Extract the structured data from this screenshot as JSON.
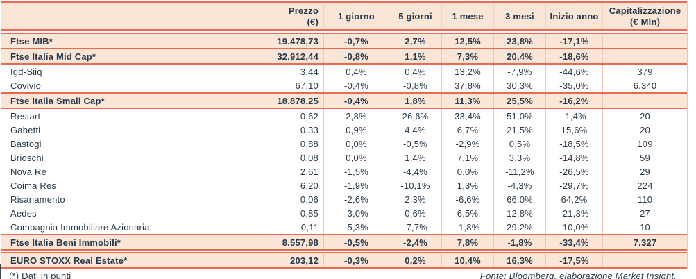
{
  "colors": {
    "accent_coral": "#eb6950",
    "row_peach": "#fbe5d6",
    "text_navy": "#25384a",
    "column_separator_pink": "#f2c4b2"
  },
  "table": {
    "header": {
      "name": "",
      "prezzo_l1": "Prezzo",
      "prezzo_l2": "(€)",
      "d1": "1 giorno",
      "d5": "5 giorni",
      "m1": "1 mese",
      "m3": "3 mesi",
      "ytd": "Inizio anno",
      "cap_l1": "Capitalizzazione",
      "cap_l2": "(€ Mln)"
    },
    "rows": [
      {
        "name": "Ftse MIB*",
        "type": "index",
        "prezzo": "19.478,73",
        "d1": "-0,7%",
        "d5": "2,7%",
        "m1": "12,5%",
        "m3": "23,8%",
        "ytd": "-17,1%",
        "cap": ""
      },
      {
        "name": "Ftse Italia Mid Cap*",
        "type": "index",
        "prezzo": "32.912,44",
        "d1": "-0,8%",
        "d5": "1,1%",
        "m1": "7,3%",
        "m3": "20,4%",
        "ytd": "-18,6%",
        "cap": ""
      },
      {
        "name": "Igd-Siiq",
        "type": "stock",
        "prezzo": "3,44",
        "d1": "0,4%",
        "d5": "0,4%",
        "m1": "13,2%",
        "m3": "-7,9%",
        "ytd": "-44,6%",
        "cap": "379"
      },
      {
        "name": "Covivio",
        "type": "stock",
        "prezzo": "67,10",
        "d1": "-0,4%",
        "d5": "-0,8%",
        "m1": "37,8%",
        "m3": "30,3%",
        "ytd": "-35,0%",
        "cap": "6.340"
      },
      {
        "name": "Ftse Italia Small Cap*",
        "type": "index",
        "prezzo": "18.878,25",
        "d1": "-0,4%",
        "d5": "1,8%",
        "m1": "11,3%",
        "m3": "25,5%",
        "ytd": "-16,2%",
        "cap": ""
      },
      {
        "name": "Restart",
        "type": "stock",
        "prezzo": "0,62",
        "d1": "2,8%",
        "d5": "26,6%",
        "m1": "33,4%",
        "m3": "51,0%",
        "ytd": "-1,4%",
        "cap": "20"
      },
      {
        "name": "Gabetti",
        "type": "stock",
        "prezzo": "0,33",
        "d1": "0,9%",
        "d5": "4,4%",
        "m1": "6,7%",
        "m3": "21,5%",
        "ytd": "15,6%",
        "cap": "20"
      },
      {
        "name": "Bastogi",
        "type": "stock",
        "prezzo": "0,88",
        "d1": "0,0%",
        "d5": "-0,5%",
        "m1": "-2,9%",
        "m3": "0,5%",
        "ytd": "-18,5%",
        "cap": "109"
      },
      {
        "name": "Brioschi",
        "type": "stock",
        "prezzo": "0,08",
        "d1": "0,0%",
        "d5": "1,4%",
        "m1": "7,1%",
        "m3": "3,3%",
        "ytd": "-14,8%",
        "cap": "59"
      },
      {
        "name": "Nova Re",
        "type": "stock",
        "prezzo": "2,61",
        "d1": "-1,5%",
        "d5": "-4,4%",
        "m1": "0,0%",
        "m3": "-11,2%",
        "ytd": "-26,5%",
        "cap": "29"
      },
      {
        "name": "Coima Res",
        "type": "stock",
        "prezzo": "6,20",
        "d1": "-1,9%",
        "d5": "-10,1%",
        "m1": "1,3%",
        "m3": "-4,3%",
        "ytd": "-29,7%",
        "cap": "224"
      },
      {
        "name": "Risanamento",
        "type": "stock",
        "prezzo": "0,06",
        "d1": "-2,6%",
        "d5": "2,3%",
        "m1": "-6,6%",
        "m3": "66,0%",
        "ytd": "64,2%",
        "cap": "110"
      },
      {
        "name": "Aedes",
        "type": "stock",
        "prezzo": "0,85",
        "d1": "-3,0%",
        "d5": "0,6%",
        "m1": "6,5%",
        "m3": "12,8%",
        "ytd": "-21,3%",
        "cap": "27"
      },
      {
        "name": "Compagnia Immobiliare Azionaria",
        "type": "stock",
        "prezzo": "0,11",
        "d1": "-5,3%",
        "d5": "-7,7%",
        "m1": "-1,8%",
        "m3": "29,2%",
        "ytd": "-10,0%",
        "cap": "10"
      },
      {
        "name": "Ftse Italia Beni Immobili*",
        "type": "index",
        "prezzo": "8.557,98",
        "d1": "-0,5%",
        "d5": "-2,4%",
        "m1": "7,8%",
        "m3": "-1,8%",
        "ytd": "-33,4%",
        "cap": "7.327"
      },
      {
        "name": "EURO STOXX Real Estate*",
        "type": "index",
        "prezzo": "203,12",
        "d1": "-0,3%",
        "d5": "0,2%",
        "m1": "10,4%",
        "m3": "16,3%",
        "ytd": "-17,5%",
        "cap": ""
      }
    ]
  },
  "footer": {
    "note": "(*) Dati in punti",
    "source": "Fonte: Bloomberg, elaborazione Market Insight."
  }
}
